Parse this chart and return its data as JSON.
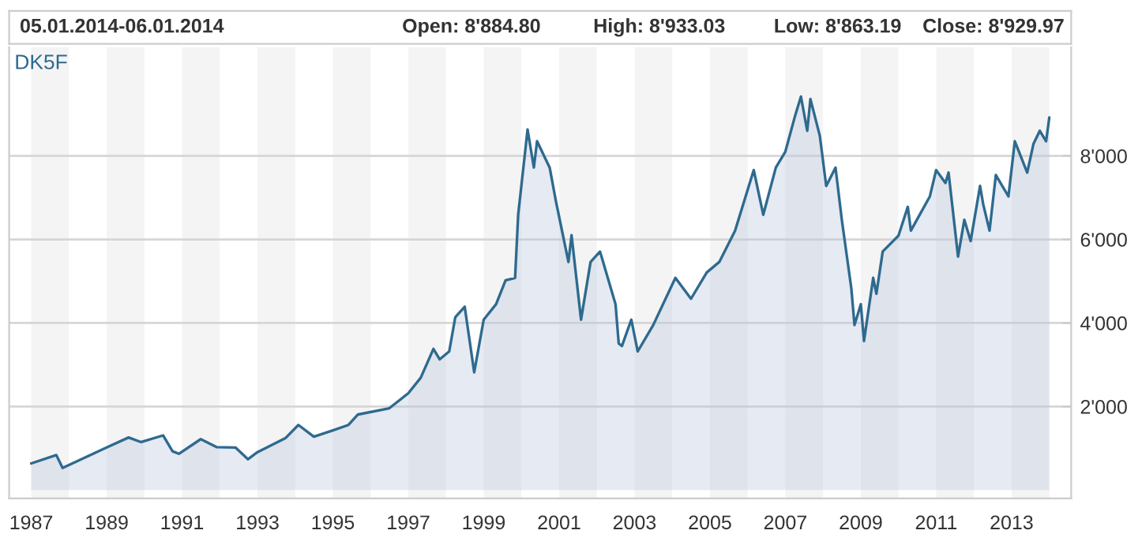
{
  "chart_data": {
    "type": "area",
    "title": "DK5F",
    "annotations": [
      "05.01.2014-06.01.2014",
      "Open: 8'884.80",
      "High: 8'933.03",
      "Low: 8'863.19",
      "Close: 8'929.97"
    ],
    "x": [
      "1987-01",
      "1987-09",
      "1987-11",
      "1989-01",
      "1989-08",
      "1989-12",
      "1990-07",
      "1990-10",
      "1990-12",
      "1991-07",
      "1991-12",
      "1992-06",
      "1992-10",
      "1993-01",
      "1993-10",
      "1994-02",
      "1994-07",
      "1995-01",
      "1995-06",
      "1995-09",
      "1996-07",
      "1997-01",
      "1997-05",
      "1997-09",
      "1997-11",
      "1998-02",
      "1998-04",
      "1998-07",
      "1998-10",
      "1999-01",
      "1999-05",
      "1999-08",
      "1999-11",
      "1999-12",
      "2000-03",
      "2000-05",
      "2000-06",
      "2000-10",
      "2000-12",
      "2001-04",
      "2001-05",
      "2001-08",
      "2001-11",
      "2002-02",
      "2002-07",
      "2002-08",
      "2002-09",
      "2002-12",
      "2003-02",
      "2003-07",
      "2004-02",
      "2004-07",
      "2004-12",
      "2005-04",
      "2005-09",
      "2006-03",
      "2006-06",
      "2006-10",
      "2007-01",
      "2007-04",
      "2007-06",
      "2007-08",
      "2007-09",
      "2007-12",
      "2008-02",
      "2008-05",
      "2008-07",
      "2008-10",
      "2008-11",
      "2009-01",
      "2009-02",
      "2009-05",
      "2009-06",
      "2009-08",
      "2010-01",
      "2010-04",
      "2010-05",
      "2010-11",
      "2011-01",
      "2011-04",
      "2011-05",
      "2011-08",
      "2011-10",
      "2011-12",
      "2012-03",
      "2012-04",
      "2012-06",
      "2012-08",
      "2012-12",
      "2013-02",
      "2013-04",
      "2013-06",
      "2013-08",
      "2013-10",
      "2013-12",
      "2014-01"
    ],
    "series": [
      {
        "color": "#2e6a8e",
        "values": [
          640,
          840,
          530,
          1020,
          1260,
          1150,
          1310,
          930,
          870,
          1220,
          1030,
          1020,
          740,
          910,
          1250,
          1560,
          1280,
          1430,
          1560,
          1810,
          1960,
          2320,
          2690,
          3380,
          3130,
          3320,
          4140,
          4390,
          2820,
          4080,
          4450,
          5020,
          5080,
          6590,
          8630,
          7720,
          8350,
          7720,
          6910,
          5460,
          6100,
          4080,
          5460,
          5710,
          4450,
          3510,
          3450,
          4080,
          3320,
          3950,
          5080,
          4580,
          5210,
          5460,
          6210,
          7660,
          6590,
          7720,
          8100,
          8920,
          9420,
          8600,
          9360,
          8480,
          7280,
          7720,
          6470,
          4830,
          3950,
          4450,
          3570,
          5080,
          4700,
          5710,
          6090,
          6780,
          6210,
          7030,
          7660,
          7350,
          7600,
          5590,
          6470,
          5960,
          7280,
          6840,
          6210,
          7540,
          7030,
          8350,
          7980,
          7600,
          8290,
          8600,
          8350,
          8920
        ]
      }
    ],
    "xlim": [
      "1986-06",
      "2014-08"
    ],
    "xticks": [
      "1987",
      "1989",
      "1991",
      "1993",
      "1995",
      "1997",
      "1999",
      "2001",
      "2003",
      "2005",
      "2007",
      "2009",
      "2011",
      "2013"
    ],
    "ylim": [
      -200,
      10600
    ],
    "yticks": [
      {
        "value": 2000,
        "label": "2'000"
      },
      {
        "value": 4000,
        "label": "4'000"
      },
      {
        "value": 6000,
        "label": "6'000"
      },
      {
        "value": 8000,
        "label": "8'000"
      }
    ],
    "grid": "y",
    "bands": [
      {
        "axis": "x",
        "from": "1987",
        "to": "1988",
        "color": "#f4f4f4"
      },
      {
        "axis": "x",
        "from": "1989",
        "to": "1990",
        "color": "#f4f4f4"
      },
      {
        "axis": "x",
        "from": "1991",
        "to": "1992",
        "color": "#f4f4f4"
      },
      {
        "axis": "x",
        "from": "1993",
        "to": "1994",
        "color": "#f4f4f4"
      },
      {
        "axis": "x",
        "from": "1995",
        "to": "1996",
        "color": "#f4f4f4"
      },
      {
        "axis": "x",
        "from": "1997",
        "to": "1998",
        "color": "#f4f4f4"
      },
      {
        "axis": "x",
        "from": "1999",
        "to": "2000",
        "color": "#f4f4f4"
      },
      {
        "axis": "x",
        "from": "2001",
        "to": "2002",
        "color": "#f4f4f4"
      },
      {
        "axis": "x",
        "from": "2003",
        "to": "2004",
        "color": "#f4f4f4"
      },
      {
        "axis": "x",
        "from": "2005",
        "to": "2006",
        "color": "#f4f4f4"
      },
      {
        "axis": "x",
        "from": "2007",
        "to": "2008",
        "color": "#f4f4f4"
      },
      {
        "axis": "x",
        "from": "2009",
        "to": "2010",
        "color": "#f4f4f4"
      },
      {
        "axis": "x",
        "from": "2011",
        "to": "2012",
        "color": "#f4f4f4"
      },
      {
        "axis": "x",
        "from": "2013",
        "to": "2014",
        "color": "#f4f4f4"
      }
    ]
  }
}
